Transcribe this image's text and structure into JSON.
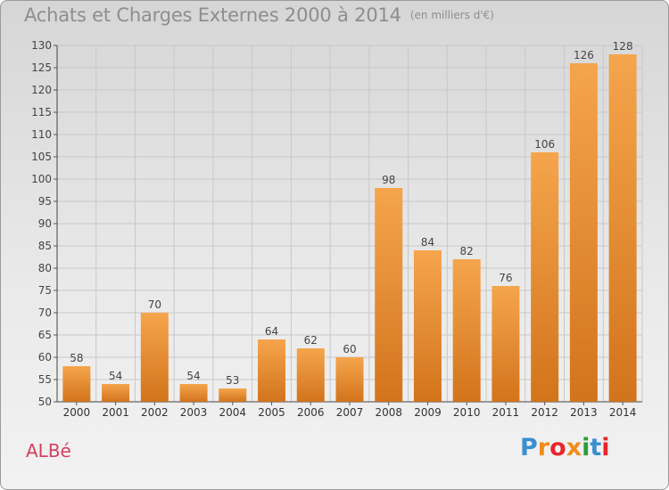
{
  "header": {
    "title": "Achats et Charges Externes 2000 à 2014",
    "unit": "(en milliers d'€)"
  },
  "footer": {
    "commune": "ALBé",
    "brand": "Proxiti"
  },
  "colors": {
    "bar_light": "#f5a54c",
    "bar_dark": "#d2741c",
    "grid": "#c8c8c8",
    "commune": "#d2425f"
  },
  "chart_data": {
    "type": "bar",
    "title": "Achats et Charges Externes 2000 à 2014",
    "subtitle": "(en milliers d'€)",
    "xlabel": "",
    "ylabel": "",
    "categories": [
      "2000",
      "2001",
      "2002",
      "2003",
      "2004",
      "2005",
      "2006",
      "2007",
      "2008",
      "2009",
      "2010",
      "2011",
      "2012",
      "2013",
      "2014"
    ],
    "values": [
      58,
      54,
      70,
      54,
      53,
      64,
      62,
      60,
      98,
      84,
      82,
      76,
      106,
      126,
      128
    ],
    "ylim": [
      50,
      130
    ],
    "yticks": [
      50,
      55,
      60,
      65,
      70,
      75,
      80,
      85,
      90,
      95,
      100,
      105,
      110,
      115,
      120,
      125,
      130
    ],
    "grid": true,
    "legend": "none"
  }
}
